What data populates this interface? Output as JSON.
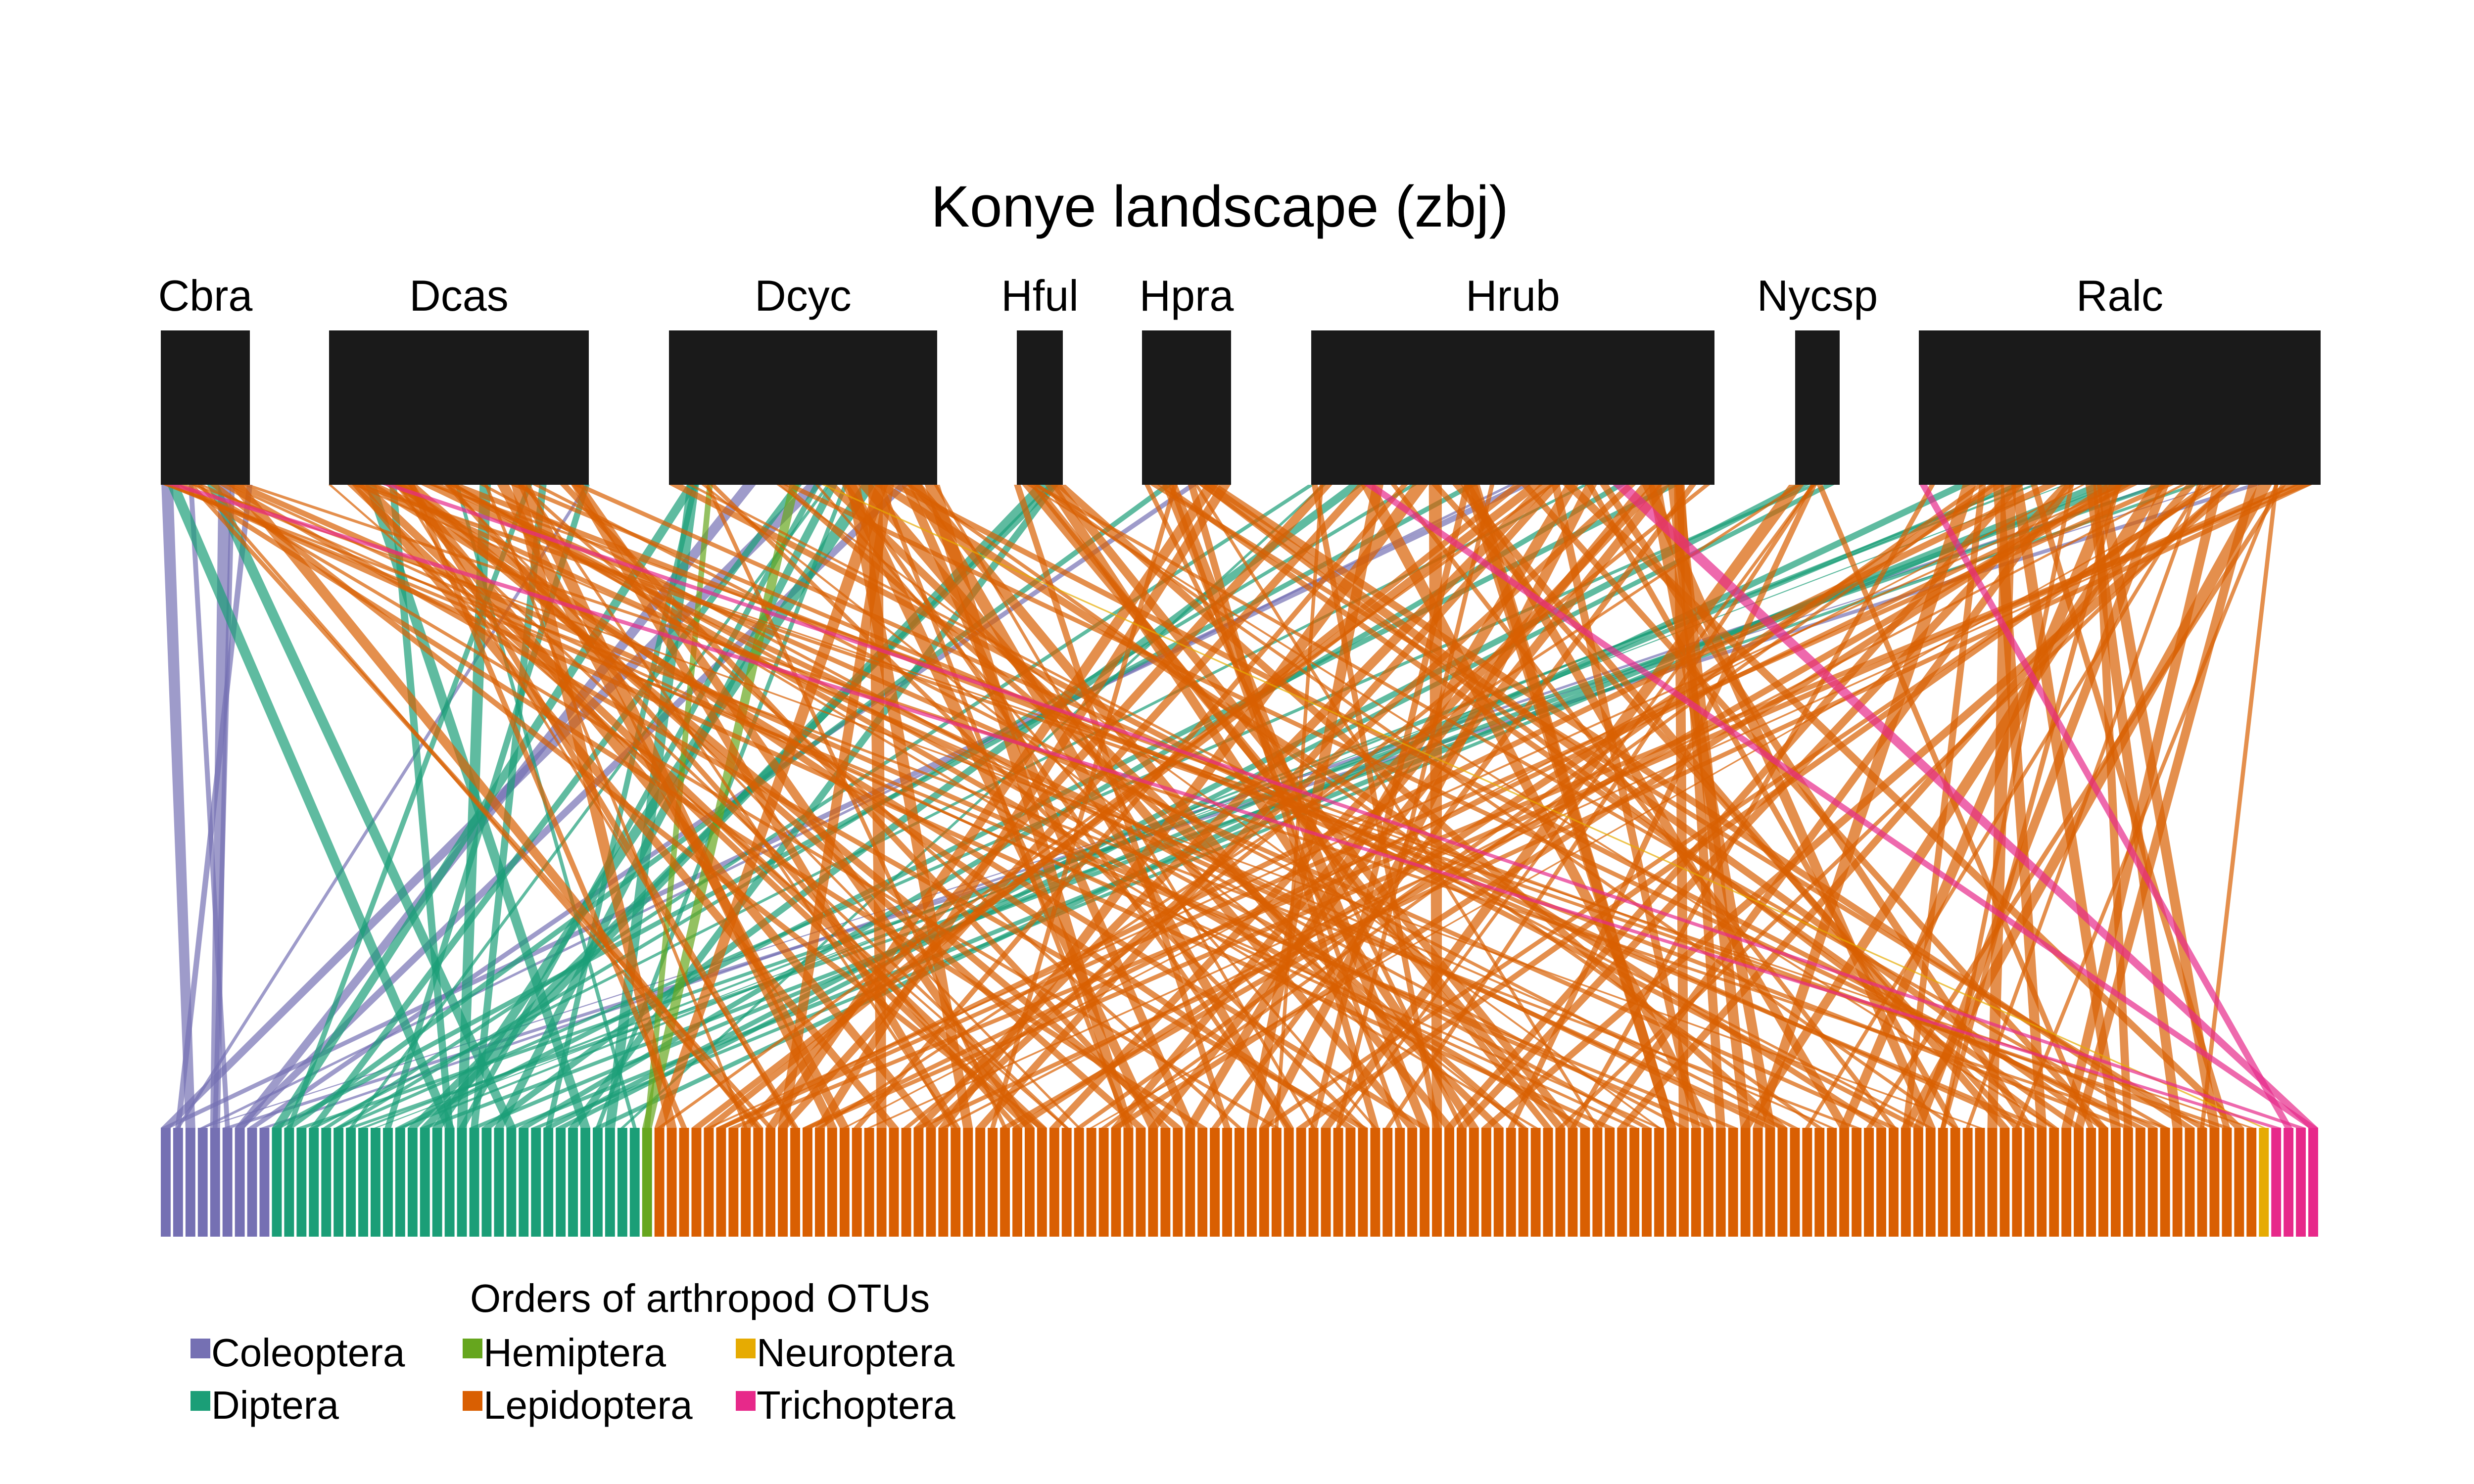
{
  "title": "Konye landscape (zbj)",
  "plants": [
    {
      "id": "Cbra",
      "label": "Cbra"
    },
    {
      "id": "Dcas",
      "label": "Dcas"
    },
    {
      "id": "Dcyc",
      "label": "Dcyc"
    },
    {
      "id": "Hful",
      "label": "Hful"
    },
    {
      "id": "Hpra",
      "label": "Hpra"
    },
    {
      "id": "Hrub",
      "label": "Hrub"
    },
    {
      "id": "Nycsp",
      "label": "Nycsp"
    },
    {
      "id": "Ralc",
      "label": "Ralc"
    }
  ],
  "orders": [
    {
      "name": "Coleoptera",
      "color": "#7570b3",
      "otu_count": 9
    },
    {
      "name": "Diptera",
      "color": "#1b9e77",
      "otu_count": 30
    },
    {
      "name": "Hemiptera",
      "color": "#66a61e",
      "otu_count": 1
    },
    {
      "name": "Lepidoptera",
      "color": "#d95f02",
      "otu_count": 130
    },
    {
      "name": "Neuroptera",
      "color": "#e6ab02",
      "otu_count": 1
    },
    {
      "name": "Trichoptera",
      "color": "#e7298a",
      "otu_count": 4
    }
  ],
  "legend": {
    "title": "Orders of arthropod OTUs",
    "items": [
      "Coleoptera",
      "Hemiptera",
      "Neuroptera",
      "Diptera",
      "Lepidoptera",
      "Trichoptera"
    ]
  },
  "node_color": "#1a1a1a"
}
